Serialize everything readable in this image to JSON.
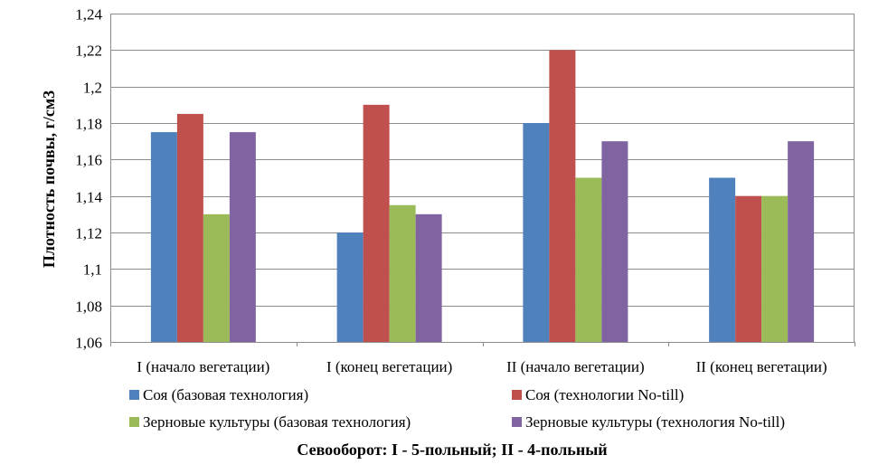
{
  "chart_data": {
    "type": "bar",
    "ylabel": "Плотность почвы, г/см3",
    "xlabel": "",
    "ylim": [
      1.06,
      1.24
    ],
    "ytick_step": 0.02,
    "yticks": [
      "1,06",
      "1,08",
      "1,1",
      "1,12",
      "1,14",
      "1,16",
      "1,18",
      "1,2",
      "1,22",
      "1,24"
    ],
    "grid": true,
    "legend_position": "bottom",
    "categories": [
      "I (начало вегетации)",
      "I (конец вегетации)",
      "II (начало вегетации)",
      "II (конец вегетации)"
    ],
    "series": [
      {
        "name": "Соя (базовая технология)",
        "color": "#4f81bd",
        "values": [
          1.175,
          1.12,
          1.18,
          1.15
        ]
      },
      {
        "name": "Соя (технологии No-till)",
        "color": "#c0504d",
        "values": [
          1.185,
          1.19,
          1.22,
          1.14
        ]
      },
      {
        "name": "Зерновые культуры (базовая технология)",
        "color": "#9bbb59",
        "values": [
          1.13,
          1.135,
          1.15,
          1.14
        ]
      },
      {
        "name": "Зерновые культуры (технология No-till)",
        "color": "#8064a2",
        "values": [
          1.175,
          1.13,
          1.17,
          1.17
        ]
      }
    ],
    "caption": "Севооборот: I - 5-польный; II - 4-польный"
  }
}
